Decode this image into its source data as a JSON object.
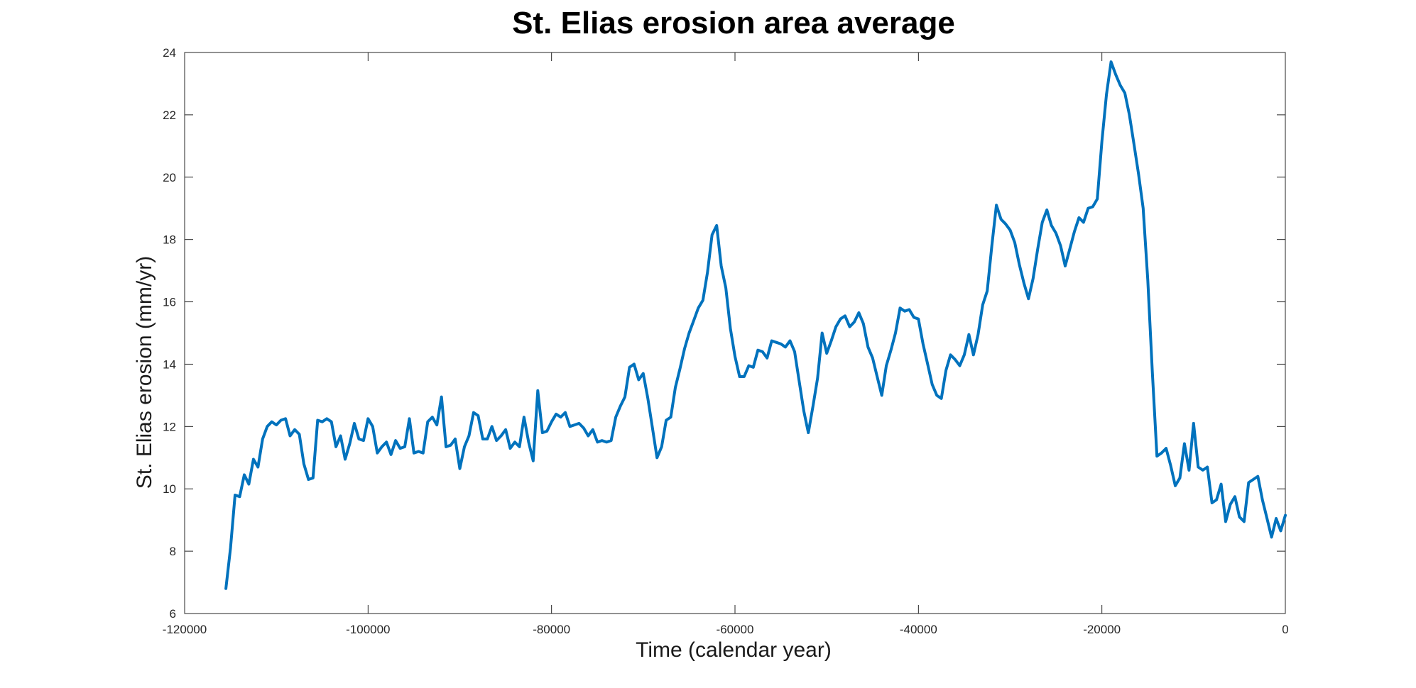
{
  "chart_data": {
    "type": "line",
    "title": "St. Elias erosion area average",
    "xlabel": "Time (calendar year)",
    "ylabel": "St. Elias erosion (mm/yr)",
    "xlim": [
      -120000,
      0
    ],
    "ylim": [
      6,
      24
    ],
    "xticks": [
      -120000,
      -100000,
      -80000,
      -60000,
      -40000,
      -20000,
      0
    ],
    "yticks": [
      6,
      8,
      10,
      12,
      14,
      16,
      18,
      20,
      22,
      24
    ],
    "xtick_labels": [
      "-120000",
      "-100000",
      "-80000",
      "-60000",
      "-40000",
      "-20000",
      "0"
    ],
    "ytick_labels": [
      "6",
      "8",
      "10",
      "12",
      "14",
      "16",
      "18",
      "20",
      "22",
      "24"
    ],
    "grid": false,
    "series": [
      {
        "color": "#0072bd",
        "x": [
          -115500,
          -115000,
          -114500,
          -114000,
          -113500,
          -113000,
          -112500,
          -112000,
          -111500,
          -111000,
          -110500,
          -110000,
          -109500,
          -109000,
          -108500,
          -108000,
          -107500,
          -107000,
          -106500,
          -106000,
          -105500,
          -105000,
          -104500,
          -104000,
          -103500,
          -103000,
          -102500,
          -102000,
          -101500,
          -101000,
          -100500,
          -100000,
          -99500,
          -99000,
          -98500,
          -98000,
          -97500,
          -97000,
          -96500,
          -96000,
          -95500,
          -95000,
          -94500,
          -94000,
          -93500,
          -93000,
          -92500,
          -92000,
          -91500,
          -91000,
          -90500,
          -90000,
          -89500,
          -89000,
          -88500,
          -88000,
          -87500,
          -87000,
          -86500,
          -86000,
          -85500,
          -85000,
          -84500,
          -84000,
          -83500,
          -83000,
          -82500,
          -82000,
          -81500,
          -81000,
          -80500,
          -80000,
          -79500,
          -79000,
          -78500,
          -78000,
          -77500,
          -77000,
          -76500,
          -76000,
          -75500,
          -75000,
          -74500,
          -74000,
          -73500,
          -73000,
          -72500,
          -72000,
          -71500,
          -71000,
          -70500,
          -70000,
          -69500,
          -69000,
          -68500,
          -68000,
          -67500,
          -67000,
          -66500,
          -66000,
          -65500,
          -65000,
          -64500,
          -64000,
          -63500,
          -63000,
          -62500,
          -62000,
          -61500,
          -61000,
          -60500,
          -60000,
          -59500,
          -59000,
          -58500,
          -58000,
          -57500,
          -57000,
          -56500,
          -56000,
          -55500,
          -55000,
          -54500,
          -54000,
          -53500,
          -53000,
          -52500,
          -52000,
          -51500,
          -51000,
          -50500,
          -50000,
          -49500,
          -49000,
          -48500,
          -48000,
          -47500,
          -47000,
          -46500,
          -46000,
          -45500,
          -45000,
          -44500,
          -44000,
          -43500,
          -43000,
          -42500,
          -42000,
          -41500,
          -41000,
          -40500,
          -40000,
          -39500,
          -39000,
          -38500,
          -38000,
          -37500,
          -37000,
          -36500,
          -36000,
          -35500,
          -35000,
          -34500,
          -34000,
          -33500,
          -33000,
          -32500,
          -32000,
          -31500,
          -31000,
          -30500,
          -30000,
          -29500,
          -29000,
          -28500,
          -28000,
          -27500,
          -27000,
          -26500,
          -26000,
          -25500,
          -25000,
          -24500,
          -24000,
          -23500,
          -23000,
          -22500,
          -22000,
          -21500,
          -21000,
          -20500,
          -20000,
          -19500,
          -19000,
          -18500,
          -18000,
          -17500,
          -17000,
          -16500,
          -16000,
          -15500,
          -15000,
          -14500,
          -14000,
          -13500,
          -13000,
          -12500,
          -12000,
          -11500,
          -11000,
          -10500,
          -10000,
          -9500,
          -9000,
          -8500,
          -8000,
          -7500,
          -7000,
          -6500,
          -6000,
          -5500,
          -5000,
          -4500,
          -4000,
          -3500,
          -3000,
          -2500,
          -2000,
          -1500,
          -1000,
          -500,
          0
        ],
        "values": [
          6.8,
          8.1,
          9.8,
          9.75,
          10.45,
          10.15,
          10.95,
          10.7,
          11.6,
          12.0,
          12.15,
          12.05,
          12.2,
          12.25,
          11.7,
          11.9,
          11.75,
          10.8,
          10.3,
          10.35,
          12.2,
          12.15,
          12.25,
          12.15,
          11.35,
          11.7,
          10.95,
          11.45,
          12.1,
          11.6,
          11.55,
          12.25,
          12.0,
          11.15,
          11.35,
          11.5,
          11.1,
          11.55,
          11.3,
          11.35,
          12.25,
          11.15,
          11.2,
          11.15,
          12.15,
          12.3,
          12.05,
          12.95,
          11.35,
          11.4,
          11.6,
          10.65,
          11.35,
          11.7,
          12.45,
          12.35,
          11.6,
          11.6,
          12.0,
          11.55,
          11.7,
          11.9,
          11.3,
          11.5,
          11.35,
          12.3,
          11.5,
          10.9,
          13.15,
          11.8,
          11.85,
          12.15,
          12.4,
          12.3,
          12.45,
          12.0,
          12.05,
          12.1,
          11.95,
          11.7,
          11.9,
          11.5,
          11.55,
          11.5,
          11.55,
          12.3,
          12.65,
          12.95,
          13.9,
          14.0,
          13.5,
          13.7,
          12.9,
          11.95,
          11.0,
          11.35,
          12.2,
          12.3,
          13.25,
          13.85,
          14.5,
          15.0,
          15.4,
          15.8,
          16.05,
          16.95,
          18.15,
          18.45,
          17.15,
          16.45,
          15.15,
          14.25,
          13.6,
          13.6,
          13.95,
          13.9,
          14.45,
          14.4,
          14.2,
          14.75,
          14.7,
          14.65,
          14.55,
          14.75,
          14.4,
          13.45,
          12.5,
          11.8,
          12.65,
          13.55,
          15.0,
          14.35,
          14.75,
          15.2,
          15.45,
          15.55,
          15.2,
          15.35,
          15.65,
          15.3,
          14.55,
          14.2,
          13.6,
          13.0,
          13.95,
          14.45,
          15.0,
          15.8,
          15.7,
          15.75,
          15.5,
          15.45,
          14.65,
          14.0,
          13.35,
          13.0,
          12.9,
          13.8,
          14.3,
          14.15,
          13.95,
          14.3,
          14.95,
          14.3,
          14.95,
          15.9,
          16.35,
          17.8,
          19.1,
          18.65,
          18.5,
          18.3,
          17.9,
          17.2,
          16.6,
          16.1,
          16.75,
          17.7,
          18.55,
          18.95,
          18.45,
          18.2,
          17.8,
          17.15,
          17.7,
          18.25,
          18.7,
          18.55,
          19.0,
          19.05,
          19.3,
          21.15,
          22.65,
          23.7,
          23.3,
          22.95,
          22.7,
          22.0,
          21.05,
          20.1,
          19.0,
          16.7,
          13.75,
          11.05,
          11.15,
          11.3,
          10.75,
          10.1,
          10.35,
          11.45,
          10.6,
          12.1,
          10.7,
          10.6,
          10.7,
          9.55,
          9.65,
          10.15,
          8.95,
          9.5,
          9.75,
          9.1,
          8.95,
          10.2,
          10.3,
          10.4,
          9.65,
          9.05,
          8.45,
          9.05,
          8.65,
          9.15
        ]
      }
    ]
  }
}
